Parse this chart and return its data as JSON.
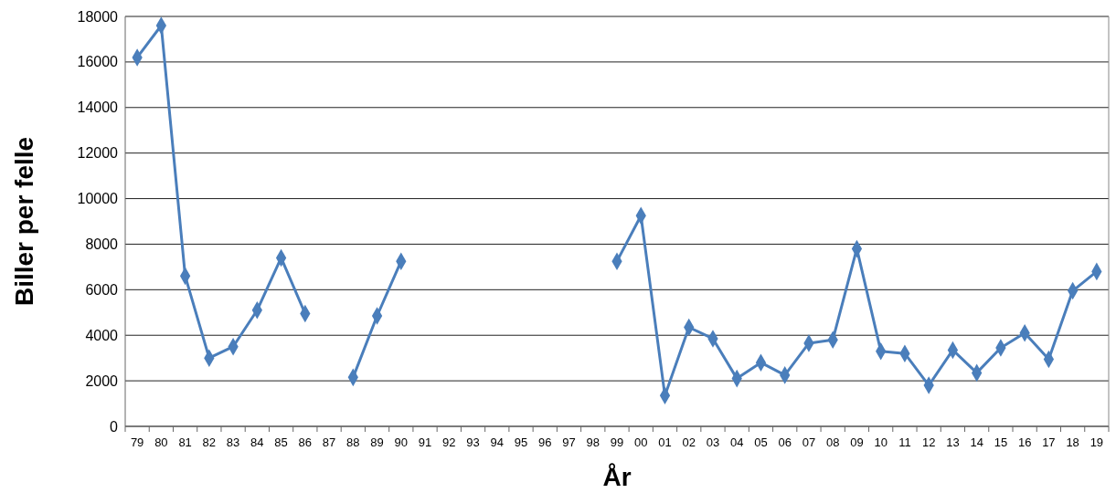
{
  "chart_data": {
    "type": "line",
    "xlabel": "År",
    "ylabel": "Biller per felle",
    "categories": [
      "79",
      "80",
      "81",
      "82",
      "83",
      "84",
      "85",
      "86",
      "87",
      "88",
      "89",
      "90",
      "91",
      "92",
      "93",
      "94",
      "95",
      "96",
      "97",
      "98",
      "99",
      "00",
      "01",
      "02",
      "03",
      "04",
      "05",
      "06",
      "07",
      "08",
      "09",
      "10",
      "11",
      "12",
      "13",
      "14",
      "15",
      "16",
      "17",
      "18",
      "19"
    ],
    "series": [
      {
        "color": "#4a7ebb",
        "values": [
          16200,
          17600,
          6600,
          3000,
          3500,
          5100,
          7400,
          4950,
          null,
          2150,
          4850,
          7250,
          null,
          null,
          null,
          null,
          null,
          null,
          null,
          null,
          7250,
          9250,
          1350,
          4350,
          3850,
          2100,
          2800,
          2250,
          3650,
          3800,
          7800,
          3300,
          3200,
          1800,
          3350,
          2350,
          3450,
          4100,
          2950,
          5950,
          6800
        ]
      }
    ],
    "ylim": [
      0,
      18000
    ],
    "yticks": [
      0,
      2000,
      4000,
      6000,
      8000,
      10000,
      12000,
      14000,
      16000,
      18000
    ],
    "grid": "y",
    "marker": "diamond",
    "line_style": "solid"
  }
}
